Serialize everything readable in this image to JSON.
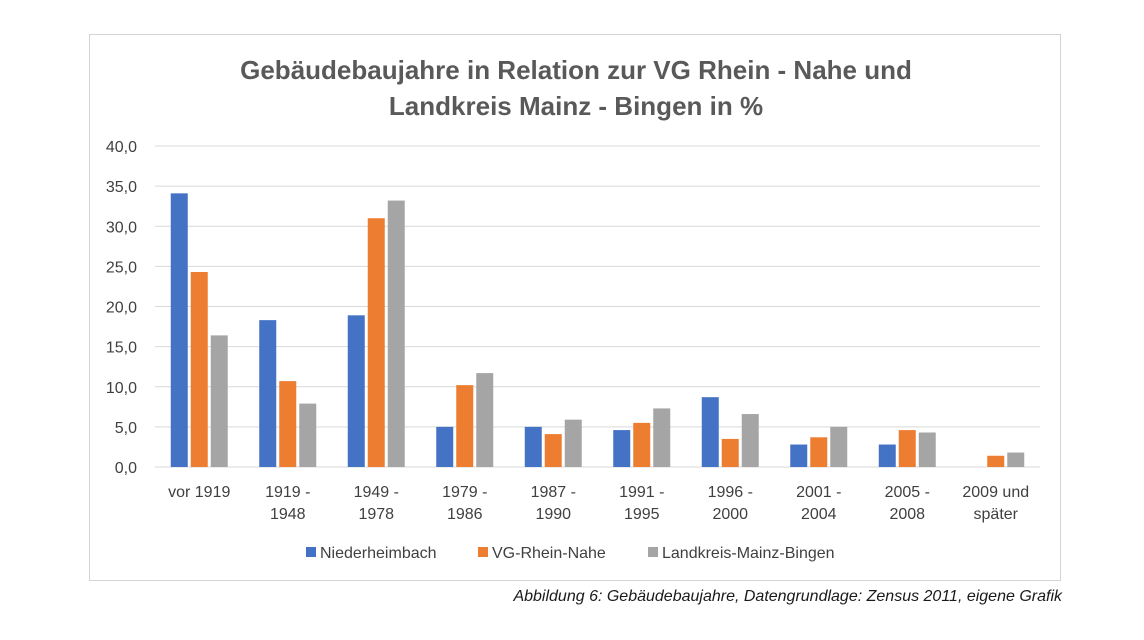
{
  "caption": "Abbildung 6: Gebäudebaujahre, Datengrundlage: Zensus 2011, eigene Grafik",
  "chart_data": {
    "type": "bar",
    "title_lines": [
      "Gebäudebaujahre in Relation zur VG Rhein - Nahe und",
      "Landkreis Mainz - Bingen in %"
    ],
    "categories": [
      [
        "vor 1919"
      ],
      [
        "1919 -",
        "1948"
      ],
      [
        "1949 -",
        "1978"
      ],
      [
        "1979 -",
        "1986"
      ],
      [
        "1987 -",
        "1990"
      ],
      [
        "1991 -",
        "1995"
      ],
      [
        "1996 -",
        "2000"
      ],
      [
        "2001 -",
        "2004"
      ],
      [
        "2005 -",
        "2008"
      ],
      [
        "2009 und",
        "später"
      ]
    ],
    "series": [
      {
        "name": "Niederheimbach",
        "color": "#4472C4",
        "values": [
          34.1,
          18.3,
          18.9,
          5.0,
          5.0,
          4.6,
          8.7,
          2.8,
          2.8,
          0.0
        ]
      },
      {
        "name": "VG-Rhein-Nahe",
        "color": "#ED7D31",
        "values": [
          24.3,
          10.7,
          31.0,
          10.2,
          4.1,
          5.5,
          3.5,
          3.7,
          4.6,
          1.4
        ]
      },
      {
        "name": "Landkreis-Mainz-Bingen",
        "color": "#A5A5A5",
        "values": [
          16.4,
          7.9,
          33.2,
          11.7,
          5.9,
          7.3,
          6.6,
          5.0,
          4.3,
          1.8
        ]
      }
    ],
    "yticks": [
      "0,0",
      "5,0",
      "10,0",
      "15,0",
      "20,0",
      "25,0",
      "30,0",
      "35,0",
      "40,0"
    ],
    "ylim": [
      0,
      40
    ],
    "grid": true,
    "legend_position": "bottom"
  }
}
